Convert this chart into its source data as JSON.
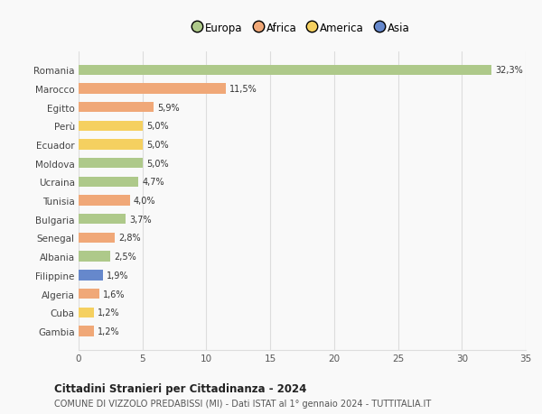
{
  "countries": [
    "Romania",
    "Marocco",
    "Egitto",
    "Perù",
    "Ecuador",
    "Moldova",
    "Ucraina",
    "Tunisia",
    "Bulgaria",
    "Senegal",
    "Albania",
    "Filippine",
    "Algeria",
    "Cuba",
    "Gambia"
  ],
  "values": [
    32.3,
    11.5,
    5.9,
    5.0,
    5.0,
    5.0,
    4.7,
    4.0,
    3.7,
    2.8,
    2.5,
    1.9,
    1.6,
    1.2,
    1.2
  ],
  "labels": [
    "32,3%",
    "11,5%",
    "5,9%",
    "5,0%",
    "5,0%",
    "5,0%",
    "4,7%",
    "4,0%",
    "3,7%",
    "2,8%",
    "2,5%",
    "1,9%",
    "1,6%",
    "1,2%",
    "1,2%"
  ],
  "continents": [
    "Europa",
    "Africa",
    "Africa",
    "America",
    "America",
    "Europa",
    "Europa",
    "Africa",
    "Europa",
    "Africa",
    "Europa",
    "Asia",
    "Africa",
    "America",
    "Africa"
  ],
  "colors": {
    "Europa": "#aec98a",
    "Africa": "#f0a878",
    "America": "#f5d060",
    "Asia": "#6688cc"
  },
  "xlim": [
    0,
    35
  ],
  "xticks": [
    0,
    5,
    10,
    15,
    20,
    25,
    30,
    35
  ],
  "title": "Cittadini Stranieri per Cittadinanza - 2024",
  "subtitle": "COMUNE DI VIZZOLO PREDABISSI (MI) - Dati ISTAT al 1° gennaio 2024 - TUTTITALIA.IT",
  "background_color": "#f9f9f9",
  "grid_color": "#dddddd",
  "legend_order": [
    "Europa",
    "Africa",
    "America",
    "Asia"
  ]
}
